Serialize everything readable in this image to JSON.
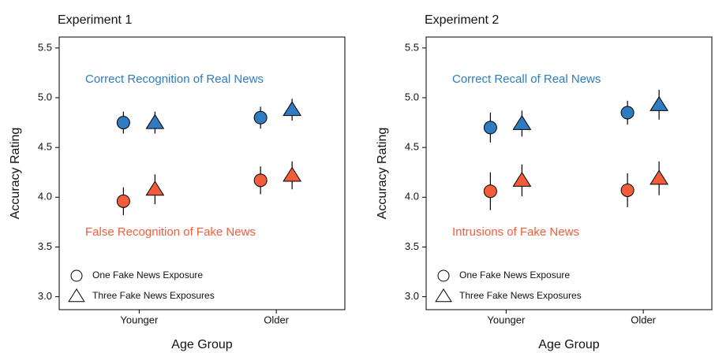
{
  "chart_data": [
    {
      "type": "scatter",
      "title": "Experiment 1",
      "xlabel": "Age Group",
      "ylabel": "Accuracy Rating",
      "categories": [
        "Younger",
        "Older"
      ],
      "ylim": [
        2.87,
        5.61
      ],
      "yticks": [
        {
          "value": 3,
          "label": "3.0"
        },
        {
          "value": 3.5,
          "label": "3.5"
        },
        {
          "value": 4,
          "label": "4.0"
        },
        {
          "value": 4.5,
          "label": "4.5"
        },
        {
          "value": 5,
          "label": "5.0"
        },
        {
          "value": 5.5,
          "label": "5.5"
        }
      ],
      "markers": [
        {
          "name": "One Fake News Exposure",
          "shape": "circle"
        },
        {
          "name": "Three Fake News Exposures",
          "shape": "triangle"
        }
      ],
      "groups": [
        {
          "label": "Correct Recognition of Real News",
          "color": "#2e7cbf",
          "values": [
            [
              4.75,
              4.8
            ],
            [
              4.75,
              4.88
            ]
          ],
          "errors": [
            [
              0.11,
              0.11
            ],
            [
              0.11,
              0.11
            ]
          ]
        },
        {
          "label": "False Recognition of Fake News",
          "color": "#f25c3b",
          "values": [
            [
              3.96,
              4.17
            ],
            [
              4.08,
              4.22
            ]
          ],
          "errors": [
            [
              0.14,
              0.14
            ],
            [
              0.15,
              0.14
            ]
          ]
        }
      ]
    },
    {
      "type": "scatter",
      "title": "Experiment 2",
      "xlabel": "Age Group",
      "ylabel": "Accuracy Rating",
      "categories": [
        "Younger",
        "Older"
      ],
      "ylim": [
        2.87,
        5.61
      ],
      "yticks": [
        {
          "value": 3,
          "label": "3.0"
        },
        {
          "value": 3.5,
          "label": "3.5"
        },
        {
          "value": 4,
          "label": "4.0"
        },
        {
          "value": 4.5,
          "label": "4.5"
        },
        {
          "value": 5,
          "label": "5.0"
        },
        {
          "value": 5.5,
          "label": "5.5"
        }
      ],
      "markers": [
        {
          "name": "One Fake News Exposure",
          "shape": "circle"
        },
        {
          "name": "Three Fake News Exposures",
          "shape": "triangle"
        }
      ],
      "groups": [
        {
          "label": "Correct Recall of Real News",
          "color": "#2e7cbf",
          "values": [
            [
              4.7,
              4.85
            ],
            [
              4.74,
              4.93
            ]
          ],
          "errors": [
            [
              0.15,
              0.12
            ],
            [
              0.13,
              0.15
            ]
          ]
        },
        {
          "label": "Intrusions of Fake News",
          "color": "#f25c3b",
          "values": [
            [
              4.06,
              4.07
            ],
            [
              4.17,
              4.19
            ]
          ],
          "errors": [
            [
              0.19,
              0.17
            ],
            [
              0.16,
              0.17
            ]
          ]
        }
      ]
    }
  ]
}
